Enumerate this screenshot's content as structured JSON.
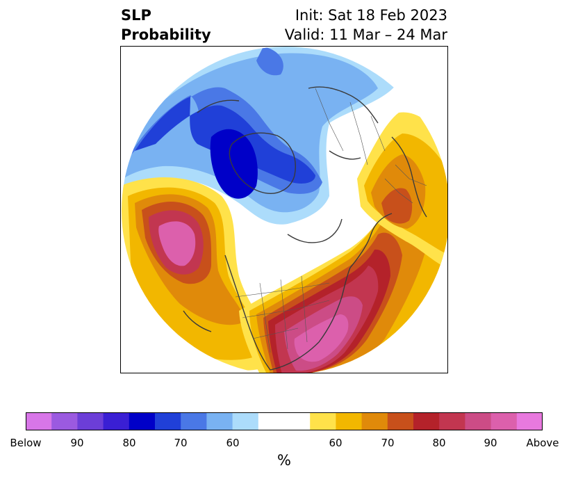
{
  "title": {
    "variable": "SLP",
    "type": "Probability",
    "init": "Init: Sat 18 Feb 2023",
    "valid": "Valid: 11 Mar – 24 Mar"
  },
  "colorbar": {
    "colors": [
      "#d876e8",
      "#9b5ae0",
      "#6c3ed8",
      "#3a1fd4",
      "#0000c8",
      "#2040d8",
      "#4a78e6",
      "#79b2f2",
      "#acdcfb",
      "#ffffff",
      "#ffffff",
      "#ffe24a",
      "#f2b700",
      "#e08a0a",
      "#c8501b",
      "#b4222a",
      "#c23650",
      "#cc4c86",
      "#dc60ac",
      "#e879de"
    ],
    "ticks": [
      "Below",
      "90",
      "80",
      "70",
      "60",
      "60",
      "70",
      "80",
      "90",
      "Above"
    ],
    "unit": "%"
  },
  "map": {
    "projection": "north-polar-stereographic",
    "below_color": "#0000c8",
    "above_color": "#dc60ac",
    "coastline_color": "#3a3a3a"
  }
}
